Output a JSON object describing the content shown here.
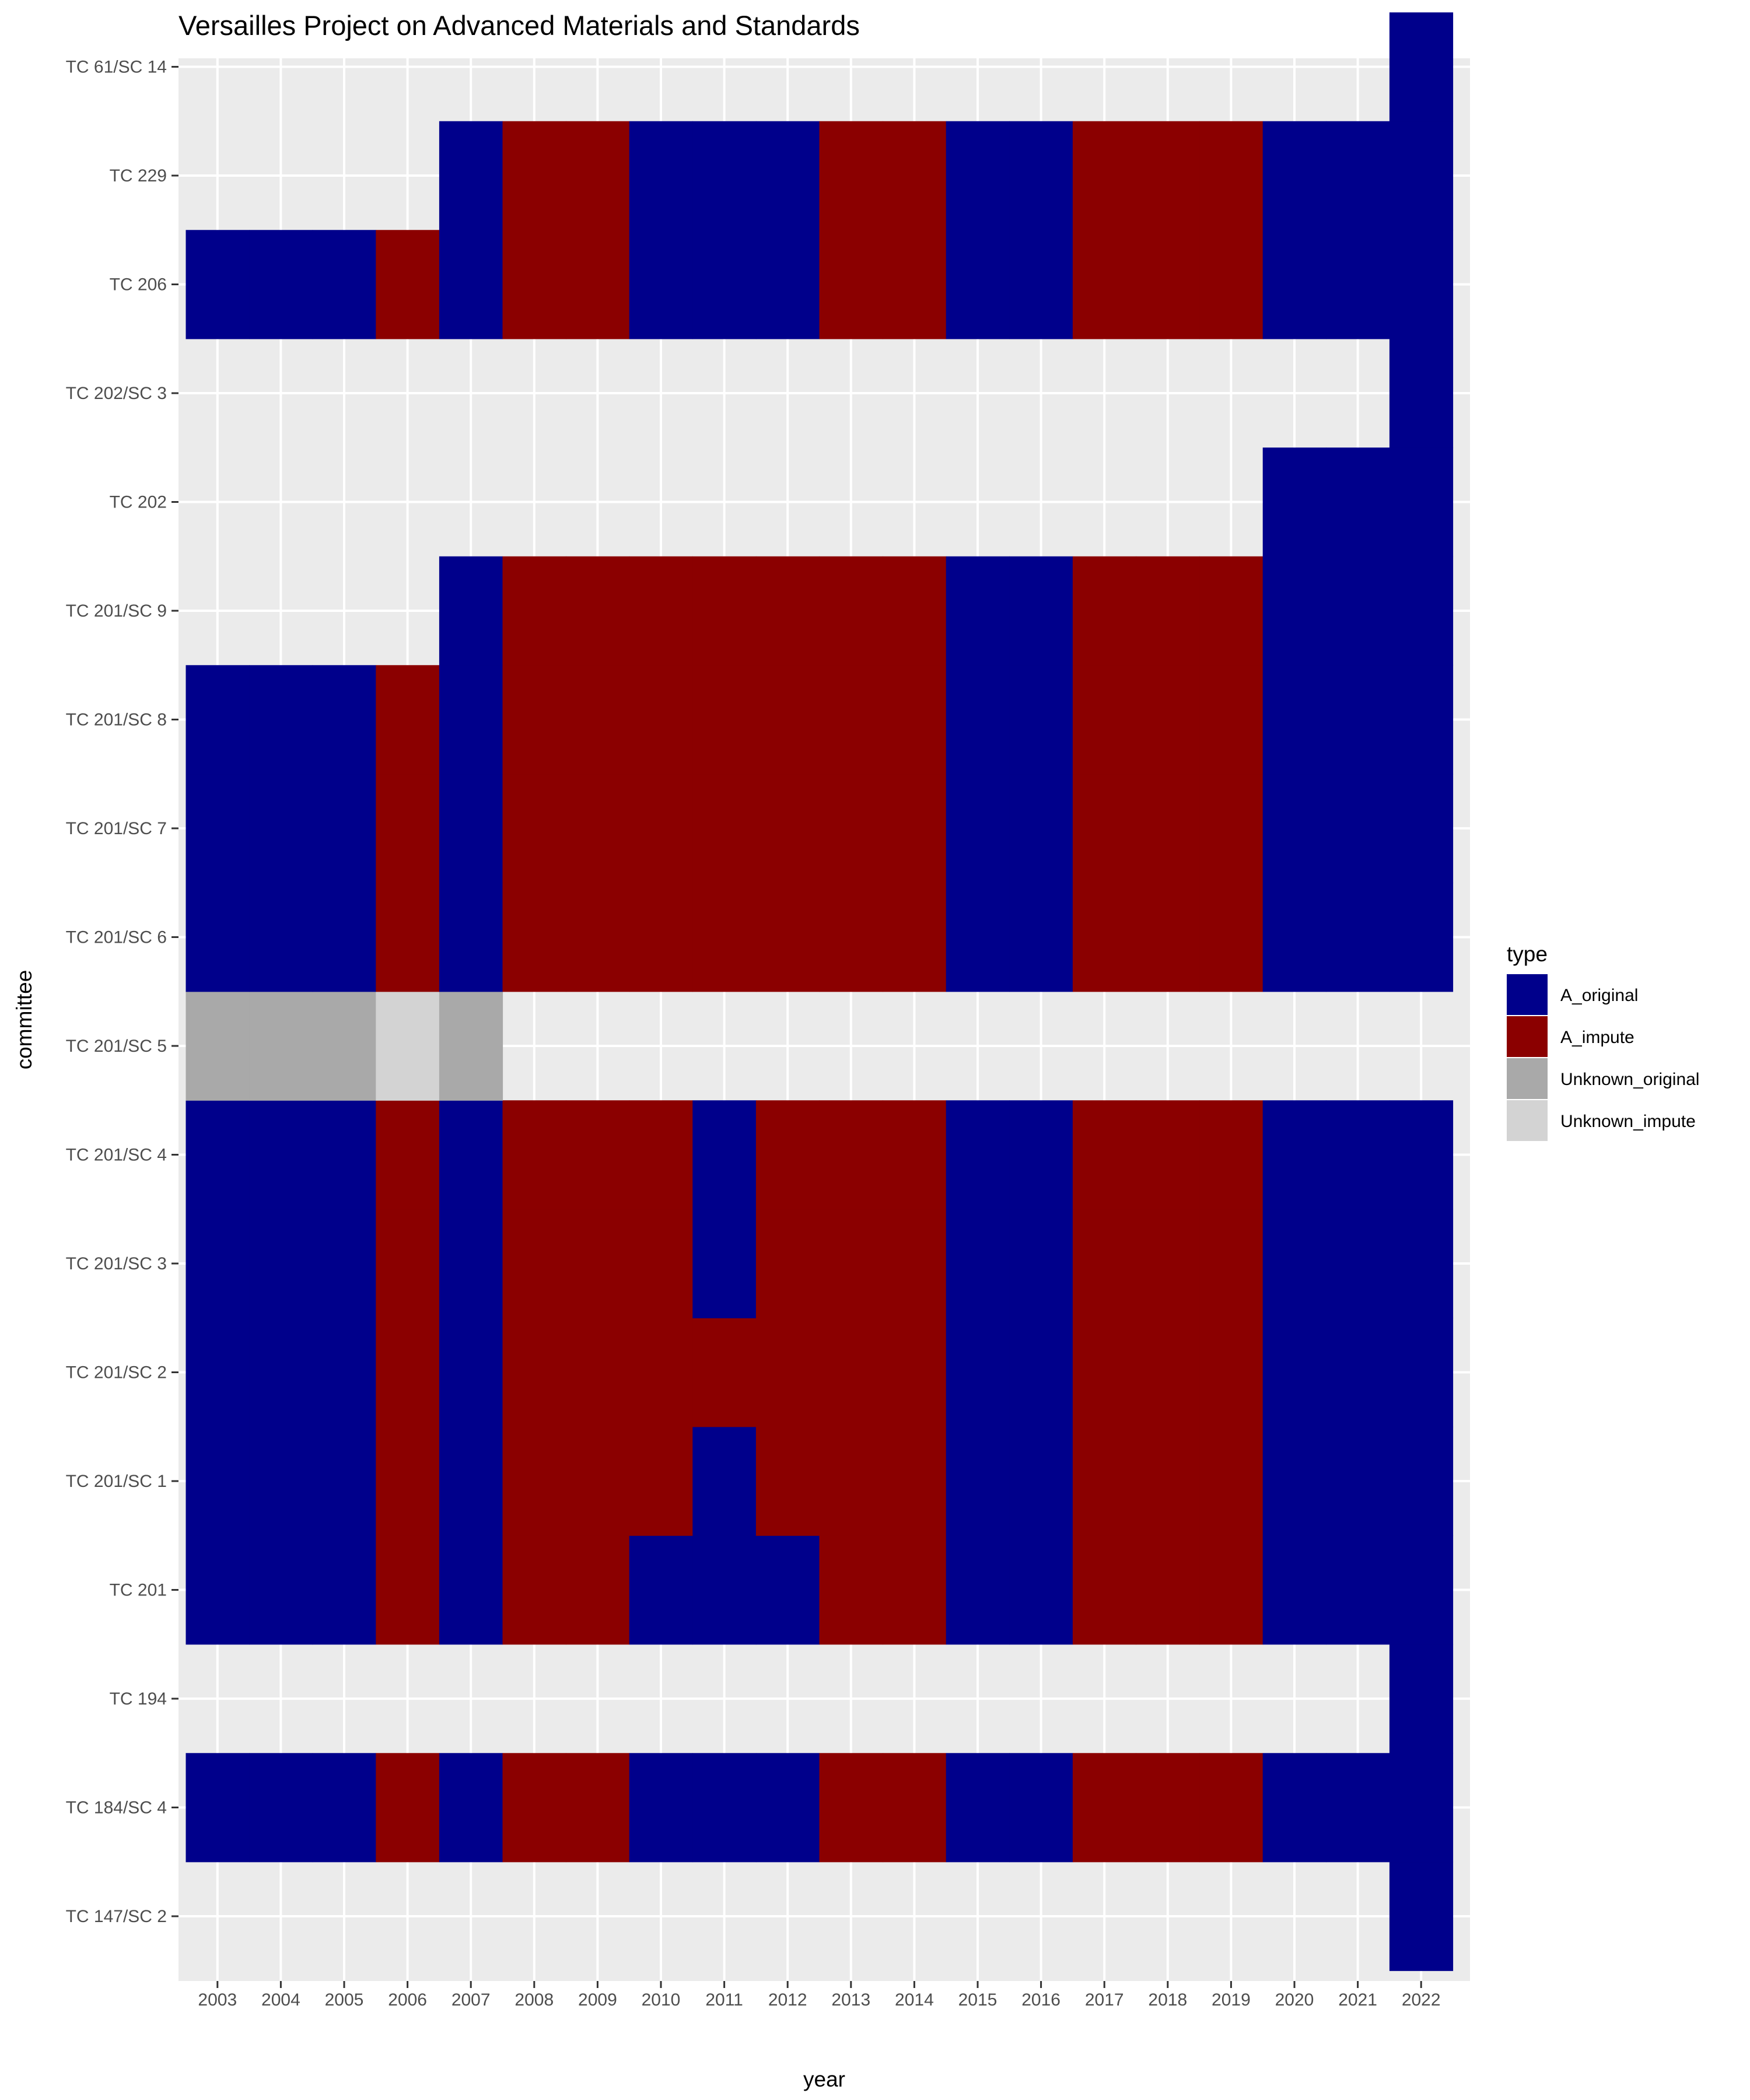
{
  "chart_data": {
    "type": "heatmap",
    "title": "Versailles Project on Advanced Materials and Standards",
    "xlabel": "year",
    "ylabel": "committee",
    "x_categories": [
      "2003",
      "2004",
      "2005",
      "2006",
      "2007",
      "2008",
      "2009",
      "2010",
      "2011",
      "2012",
      "2013",
      "2014",
      "2015",
      "2016",
      "2017",
      "2018",
      "2019",
      "2020",
      "2021",
      "2022"
    ],
    "y_categories": [
      "TC 147/SC 2",
      "TC 184/SC 4",
      "TC 194",
      "TC 201",
      "TC 201/SC 1",
      "TC 201/SC 2",
      "TC 201/SC 3",
      "TC 201/SC 4",
      "TC 201/SC 5",
      "TC 201/SC 6",
      "TC 201/SC 7",
      "TC 201/SC 8",
      "TC 201/SC 9",
      "TC 202",
      "TC 202/SC 3",
      "TC 206",
      "TC 229",
      "TC 61/SC 14"
    ],
    "grid": true,
    "legend": {
      "title": "type",
      "position": "right",
      "entries": [
        {
          "key": "O",
          "label": "A_original",
          "color": "#00008B"
        },
        {
          "key": "I",
          "label": "A_impute",
          "color": "#8B0000"
        },
        {
          "key": "U",
          "label": "Unknown_original",
          "color": "#A9A9A9"
        },
        {
          "key": "V",
          "label": "Unknown_impute",
          "color": "#D3D3D3"
        }
      ]
    },
    "cells": [
      {
        "committee": "TC 147/SC 2",
        "row": "...................O"
      },
      {
        "committee": "TC 184/SC 4",
        "row": "OOOIOIIOOOIIOOIIIOOO"
      },
      {
        "committee": "TC 194",
        "row": "...................O"
      },
      {
        "committee": "TC 201",
        "row": "OOOIOIIOOOIIOOIIIOOO"
      },
      {
        "committee": "TC 201/SC 1",
        "row": "OOOIOIIIOIIIOOIIIOOO"
      },
      {
        "committee": "TC 201/SC 2",
        "row": "OOOIOIIIIIIIOOIIIOOO"
      },
      {
        "committee": "TC 201/SC 3",
        "row": "OOOIOIIIOIIIOOIIIOOO"
      },
      {
        "committee": "TC 201/SC 4",
        "row": "OOOIOIIIOIIIOOIIIOOO"
      },
      {
        "committee": "TC 201/SC 5",
        "row": "UUUVU..............."
      },
      {
        "committee": "TC 201/SC 6",
        "row": "OOOIOIIIIIIIOOIIIOOO"
      },
      {
        "committee": "TC 201/SC 7",
        "row": "OOOIOIIIIIIIOOIIIOOO"
      },
      {
        "committee": "TC 201/SC 8",
        "row": "OOOIOIIIIIIIOOIIIOOO"
      },
      {
        "committee": "TC 201/SC 9",
        "row": "....OIIIIIIIOOIIIOOO"
      },
      {
        "committee": "TC 202",
        "row": ".................OOO"
      },
      {
        "committee": "TC 202/SC 3",
        "row": "...................O"
      },
      {
        "committee": "TC 206",
        "row": "OOOIOIIOOOIIOOIIIOOO"
      },
      {
        "committee": "TC 229",
        "row": "....OIIOOOIIOOIIIOOO"
      },
      {
        "committee": "TC 61/SC 14",
        "row": "...................O"
      }
    ]
  }
}
